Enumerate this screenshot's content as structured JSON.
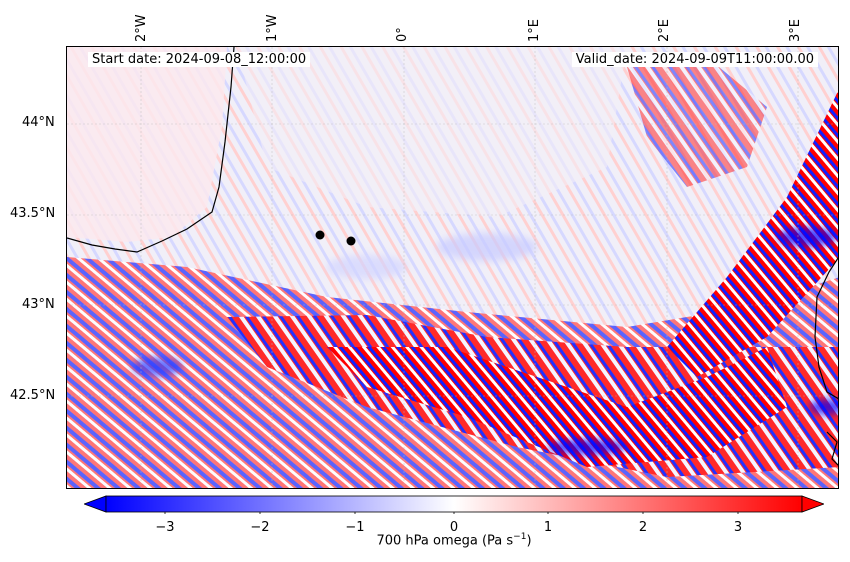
{
  "map": {
    "start_date": "Start date: 2024-09-08_12:00:00",
    "valid_date": "Valid_date: 2024-09-09T11:00:00.00",
    "longitude_labels": [
      "2°W",
      "1°W",
      "0°",
      "1°E",
      "2°E",
      "3°E"
    ],
    "latitude_labels": [
      "44°N",
      "43.5°N",
      "43°N",
      "42.5°N"
    ],
    "field": "700 hPa omega",
    "colormap": {
      "negative": "#0000ff",
      "zero": "#ffffff",
      "positive": "#ff0000"
    },
    "markers": [
      {
        "name": "point-1",
        "color": "#000000"
      },
      {
        "name": "point-2",
        "color": "#000000"
      }
    ]
  },
  "colorbar": {
    "ticks": [
      "−3",
      "−2",
      "−1",
      "0",
      "1",
      "2",
      "3"
    ],
    "label_prefix": "700 hPa omega (Pa s",
    "label_exp": "−1",
    "label_suffix": ")",
    "range": [
      -3.6,
      3.6
    ],
    "extend": "both"
  }
}
